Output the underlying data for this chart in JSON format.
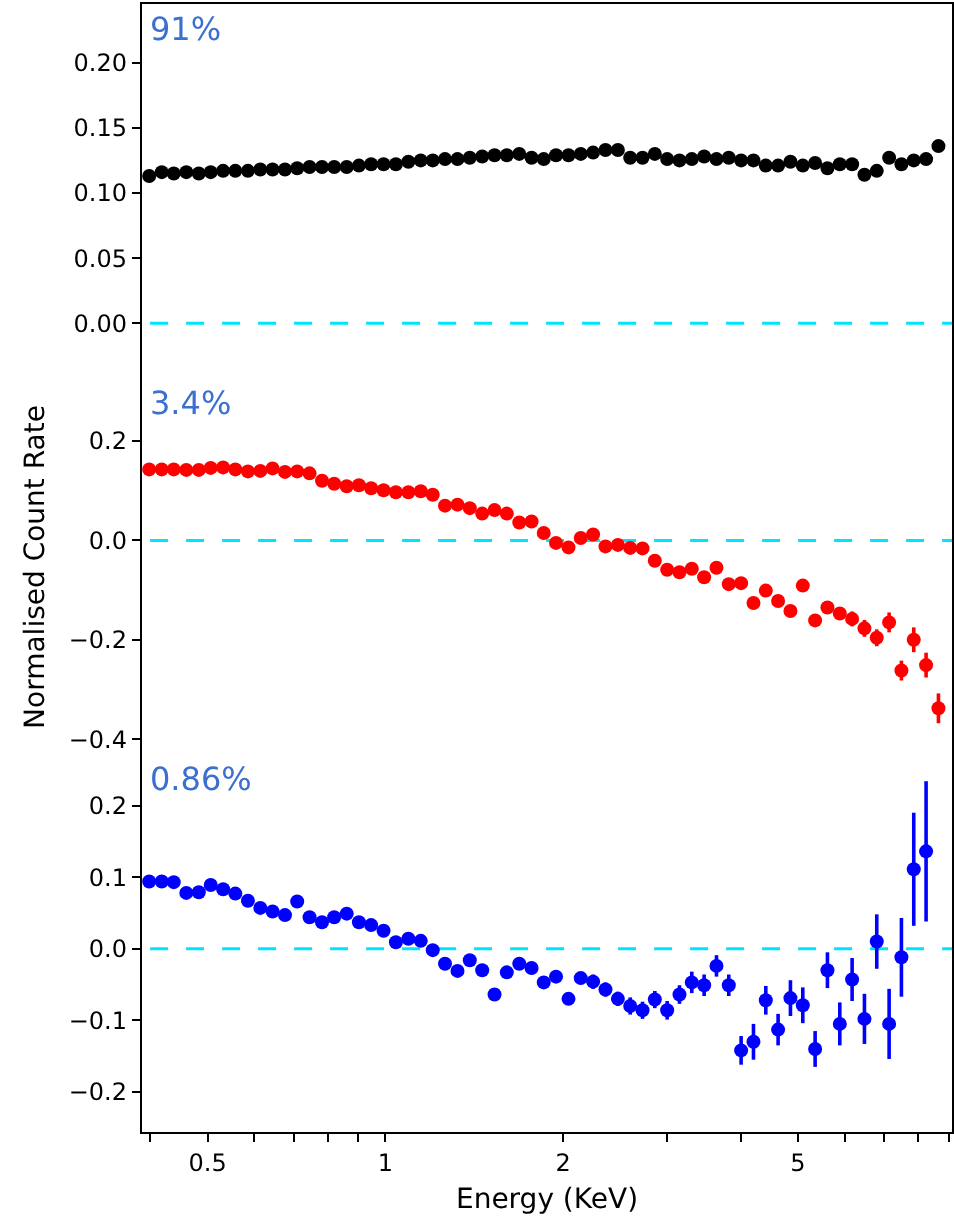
{
  "chart_data": [
    {
      "type": "scatter",
      "annotations": [
        "91%"
      ],
      "marker": "circle",
      "grid": false,
      "tick_labels": "y",
      "log": "x",
      "xlim": [
        0.387,
        9.12
      ],
      "ylim": [
        -0.045,
        0.245
      ],
      "yticks": [
        {
          "value": 0,
          "label": "0.00"
        },
        {
          "value": 0.05,
          "label": "0.05"
        },
        {
          "value": 0.1,
          "label": "0.10"
        },
        {
          "value": 0.15,
          "label": "0.15"
        },
        {
          "value": 0.2,
          "label": "0.20"
        }
      ],
      "ref_lines": [
        {
          "axis": "y",
          "value": 0,
          "color": "#00e5ff",
          "line_style": "dashed"
        }
      ],
      "x": [
        0.398,
        0.418,
        0.438,
        0.46,
        0.483,
        0.506,
        0.531,
        0.557,
        0.585,
        0.614,
        0.644,
        0.676,
        0.709,
        0.744,
        0.781,
        0.819,
        0.86,
        0.902,
        0.946,
        0.993,
        1.042,
        1.094,
        1.148,
        1.203,
        1.262,
        1.325,
        1.39,
        1.459,
        1.531,
        1.606,
        1.686,
        1.769,
        1.855,
        1.946,
        2.043,
        2.143,
        2.249,
        2.36,
        2.477,
        2.599,
        2.727,
        2.861,
        3.002,
        3.15,
        3.305,
        3.468,
        3.639,
        3.818,
        4.006,
        4.204,
        4.411,
        4.628,
        4.856,
        5.096,
        5.347,
        5.61,
        5.887,
        6.177,
        6.481,
        6.8,
        7.136,
        7.487,
        7.856,
        8.243,
        8.65
      ],
      "series": [
        {
          "color": "#000000",
          "values": [
            0.113,
            0.116,
            0.115,
            0.116,
            0.115,
            0.116,
            0.117,
            0.117,
            0.117,
            0.118,
            0.118,
            0.118,
            0.119,
            0.12,
            0.12,
            0.12,
            0.12,
            0.121,
            0.122,
            0.122,
            0.122,
            0.124,
            0.125,
            0.125,
            0.126,
            0.126,
            0.127,
            0.128,
            0.129,
            0.129,
            0.13,
            0.127,
            0.126,
            0.129,
            0.129,
            0.13,
            0.131,
            0.133,
            0.133,
            0.127,
            0.127,
            0.13,
            0.126,
            0.125,
            0.126,
            0.128,
            0.126,
            0.127,
            0.125,
            0.125,
            0.121,
            0.121,
            0.124,
            0.121,
            0.123,
            0.119,
            0.122,
            0.122,
            0.114,
            0.117,
            0.127,
            0.122,
            0.125,
            0.126,
            0.136
          ]
        }
      ]
    },
    {
      "type": "scatter",
      "annotations": [
        "3.4%"
      ],
      "ylabel": "Normalised Count Rate",
      "marker": "circle",
      "grid": false,
      "tick_labels": "y",
      "log": "x",
      "xlim": [
        0.387,
        9.12
      ],
      "ylim": [
        -0.434,
        0.327
      ],
      "yticks": [
        {
          "value": -0.4,
          "label": "−0.4"
        },
        {
          "value": -0.2,
          "label": "−0.2"
        },
        {
          "value": 0,
          "label": "0.0"
        },
        {
          "value": 0.2,
          "label": "0.2"
        }
      ],
      "ref_lines": [
        {
          "axis": "y",
          "value": 0,
          "color": "#00e5ff",
          "line_style": "dashed"
        }
      ],
      "x": [
        0.398,
        0.418,
        0.438,
        0.46,
        0.483,
        0.506,
        0.531,
        0.557,
        0.585,
        0.614,
        0.644,
        0.676,
        0.709,
        0.744,
        0.781,
        0.819,
        0.86,
        0.902,
        0.946,
        0.993,
        1.042,
        1.094,
        1.148,
        1.203,
        1.262,
        1.325,
        1.39,
        1.459,
        1.531,
        1.606,
        1.686,
        1.769,
        1.855,
        1.946,
        2.043,
        2.143,
        2.249,
        2.36,
        2.477,
        2.599,
        2.727,
        2.861,
        3.002,
        3.15,
        3.305,
        3.468,
        3.639,
        3.818,
        4.006,
        4.204,
        4.411,
        4.628,
        4.856,
        5.096,
        5.347,
        5.61,
        5.887,
        6.177,
        6.481,
        6.8,
        7.136,
        7.487,
        7.856,
        8.243,
        8.65
      ],
      "series": [
        {
          "color": "#ff0000",
          "values": [
            0.143,
            0.143,
            0.143,
            0.142,
            0.142,
            0.146,
            0.147,
            0.143,
            0.139,
            0.14,
            0.145,
            0.138,
            0.139,
            0.135,
            0.12,
            0.114,
            0.109,
            0.111,
            0.105,
            0.101,
            0.097,
            0.097,
            0.099,
            0.092,
            0.07,
            0.072,
            0.065,
            0.054,
            0.061,
            0.054,
            0.036,
            0.038,
            0.015,
            -0.005,
            -0.014,
            0.005,
            0.012,
            -0.012,
            -0.009,
            -0.015,
            -0.016,
            -0.041,
            -0.059,
            -0.064,
            -0.057,
            -0.074,
            -0.055,
            -0.088,
            -0.086,
            -0.126,
            -0.101,
            -0.122,
            -0.142,
            -0.091,
            -0.161,
            -0.135,
            -0.147,
            -0.158,
            -0.177,
            -0.196,
            -0.165,
            -0.262,
            -0.2,
            -0.251,
            -0.338
          ],
          "errors": [
            null,
            null,
            null,
            null,
            null,
            null,
            null,
            null,
            null,
            null,
            null,
            null,
            null,
            null,
            null,
            null,
            null,
            null,
            null,
            null,
            null,
            null,
            null,
            null,
            null,
            null,
            null,
            null,
            null,
            null,
            null,
            null,
            null,
            null,
            null,
            null,
            null,
            null,
            null,
            null,
            null,
            0.008,
            0.008,
            0.008,
            0.008,
            0.008,
            0.008,
            0.008,
            0.008,
            0.008,
            0.008,
            0.012,
            0.012,
            0.012,
            0.012,
            0.012,
            0.012,
            0.015,
            0.017,
            0.017,
            0.02,
            0.02,
            0.025,
            0.025,
            0.03
          ]
        }
      ]
    },
    {
      "type": "scatter",
      "annotations": [
        "0.86%"
      ],
      "xlabel": "Energy (KeV)",
      "marker": "circle",
      "grid": false,
      "log": "x",
      "xlim": [
        0.387,
        9.12
      ],
      "ylim": [
        -0.256,
        0.272
      ],
      "xticks": [
        {
          "value": 0.4,
          "label": null
        },
        {
          "value": 0.5,
          "label": "0.5"
        },
        {
          "value": 0.6,
          "label": null
        },
        {
          "value": 0.7,
          "label": null
        },
        {
          "value": 0.8,
          "label": null
        },
        {
          "value": 0.9,
          "label": null
        },
        1,
        2,
        {
          "value": 3,
          "label": null
        },
        {
          "value": 4,
          "label": null
        },
        5,
        {
          "value": 6,
          "label": null
        },
        {
          "value": 7,
          "label": null
        },
        {
          "value": 8,
          "label": null
        },
        {
          "value": 9,
          "label": null
        }
      ],
      "yticks": [
        {
          "value": -0.2,
          "label": "−0.2"
        },
        {
          "value": -0.1,
          "label": "−0.1"
        },
        {
          "value": 0,
          "label": "0.0"
        },
        {
          "value": 0.1,
          "label": "0.1"
        },
        {
          "value": 0.2,
          "label": "0.2"
        }
      ],
      "ref_lines": [
        {
          "axis": "y",
          "value": 0,
          "color": "#00e5ff",
          "line_style": "dashed"
        }
      ],
      "x": [
        0.398,
        0.418,
        0.438,
        0.46,
        0.483,
        0.506,
        0.531,
        0.557,
        0.585,
        0.614,
        0.644,
        0.676,
        0.709,
        0.744,
        0.781,
        0.819,
        0.86,
        0.902,
        0.946,
        0.993,
        1.042,
        1.094,
        1.148,
        1.203,
        1.262,
        1.325,
        1.39,
        1.459,
        1.531,
        1.606,
        1.686,
        1.769,
        1.855,
        1.946,
        2.043,
        2.143,
        2.249,
        2.36,
        2.477,
        2.599,
        2.727,
        2.861,
        3.002,
        3.15,
        3.305,
        3.468,
        3.639,
        3.818,
        4.006,
        4.204,
        4.411,
        4.628,
        4.856,
        5.096,
        5.347,
        5.61,
        5.887,
        6.177,
        6.481,
        6.8,
        7.136,
        7.487,
        7.856,
        8.243
      ],
      "series": [
        {
          "color": "#0000ff",
          "values": [
            0.094,
            0.094,
            0.093,
            0.078,
            0.079,
            0.089,
            0.083,
            0.077,
            0.067,
            0.057,
            0.052,
            0.047,
            0.066,
            0.044,
            0.037,
            0.044,
            0.049,
            0.037,
            0.033,
            0.025,
            0.009,
            0.014,
            0.011,
            -0.002,
            -0.021,
            -0.031,
            -0.016,
            -0.03,
            -0.064,
            -0.033,
            -0.021,
            -0.027,
            -0.047,
            -0.039,
            -0.07,
            -0.041,
            -0.046,
            -0.057,
            -0.07,
            -0.08,
            -0.086,
            -0.071,
            -0.086,
            -0.064,
            -0.047,
            -0.051,
            -0.024,
            -0.051,
            -0.142,
            -0.13,
            -0.072,
            -0.113,
            -0.069,
            -0.079,
            -0.14,
            -0.03,
            -0.105,
            -0.043,
            -0.098,
            0.01,
            -0.105,
            -0.012,
            0.111,
            0.136
          ],
          "errors": [
            null,
            null,
            null,
            null,
            null,
            null,
            null,
            null,
            null,
            null,
            null,
            null,
            null,
            null,
            null,
            null,
            null,
            null,
            null,
            null,
            null,
            null,
            null,
            null,
            null,
            null,
            null,
            null,
            null,
            null,
            null,
            null,
            null,
            null,
            0.008,
            0.008,
            0.01,
            0.01,
            0.01,
            0.012,
            0.012,
            0.012,
            0.013,
            0.013,
            0.015,
            0.015,
            0.015,
            0.015,
            0.02,
            0.025,
            0.02,
            0.022,
            0.025,
            0.025,
            0.025,
            0.025,
            0.03,
            0.03,
            0.035,
            0.038,
            0.049,
            0.055,
            0.079,
            0.098
          ]
        }
      ]
    }
  ]
}
